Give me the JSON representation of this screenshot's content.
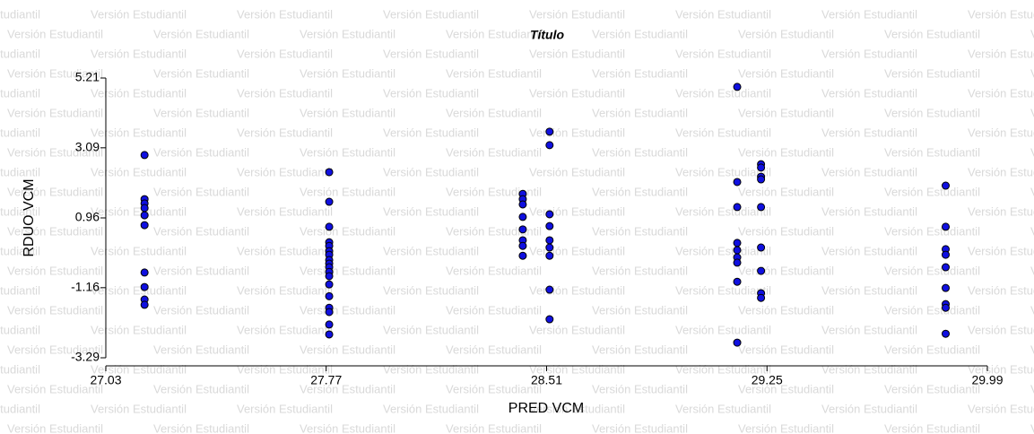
{
  "watermark": "Versión Estudiantil",
  "chart_data": {
    "type": "scatter",
    "title": "Título",
    "x_label": "PRED VCM",
    "y_label": "RDUO VCM",
    "xlim": [
      27.03,
      29.99
    ],
    "xticks": [
      27.03,
      27.77,
      28.51,
      29.25,
      29.99
    ],
    "ylim": [
      -3.29,
      5.21
    ],
    "yticks": [
      -3.29,
      -1.16,
      0.96,
      3.09,
      5.21
    ],
    "series": [
      {
        "name": "RDUO VCM",
        "color": "#1010e0",
        "x": [
          27.16,
          27.16,
          27.16,
          27.16,
          27.16,
          27.16,
          27.16,
          27.16,
          27.16,
          27.16,
          27.78,
          27.78,
          27.78,
          27.78,
          27.78,
          27.78,
          27.78,
          27.78,
          27.78,
          27.78,
          27.78,
          27.78,
          27.78,
          27.78,
          27.78,
          27.78,
          27.78,
          27.78,
          28.43,
          28.43,
          28.43,
          28.43,
          28.43,
          28.43,
          28.43,
          28.43,
          28.52,
          28.52,
          28.52,
          28.52,
          28.52,
          28.52,
          28.52,
          28.52,
          28.52,
          29.15,
          29.15,
          29.15,
          29.15,
          29.15,
          29.15,
          29.15,
          29.15,
          29.15,
          29.23,
          29.23,
          29.23,
          29.23,
          29.23,
          29.23,
          29.23,
          29.23,
          29.23,
          29.85,
          29.85,
          29.85,
          29.85,
          29.85,
          29.85,
          29.85,
          29.85,
          29.85
        ],
        "values": [
          2.87,
          1.53,
          1.4,
          1.26,
          1.04,
          0.74,
          -0.7,
          -1.14,
          -1.52,
          -1.68,
          2.35,
          1.45,
          0.69,
          0.22,
          0.11,
          -0.05,
          -0.16,
          -0.32,
          -0.43,
          -0.54,
          -0.68,
          -0.81,
          -1.06,
          -1.42,
          -1.77,
          -1.9,
          -2.28,
          -2.58,
          1.69,
          1.53,
          1.37,
          0.99,
          0.61,
          0.28,
          0.11,
          -0.19,
          3.58,
          3.17,
          1.07,
          0.71,
          0.28,
          0.06,
          -0.19,
          -1.22,
          -2.12,
          4.94,
          2.05,
          1.29,
          0.2,
          -0.02,
          -0.24,
          -0.4,
          -0.98,
          -2.83,
          2.59,
          2.49,
          2.21,
          2.13,
          1.29,
          0.06,
          -0.65,
          -1.33,
          -1.47,
          1.94,
          0.69,
          0.01,
          -0.16,
          -0.54,
          -1.17,
          -1.66,
          -1.77,
          -2.56
        ]
      }
    ]
  }
}
